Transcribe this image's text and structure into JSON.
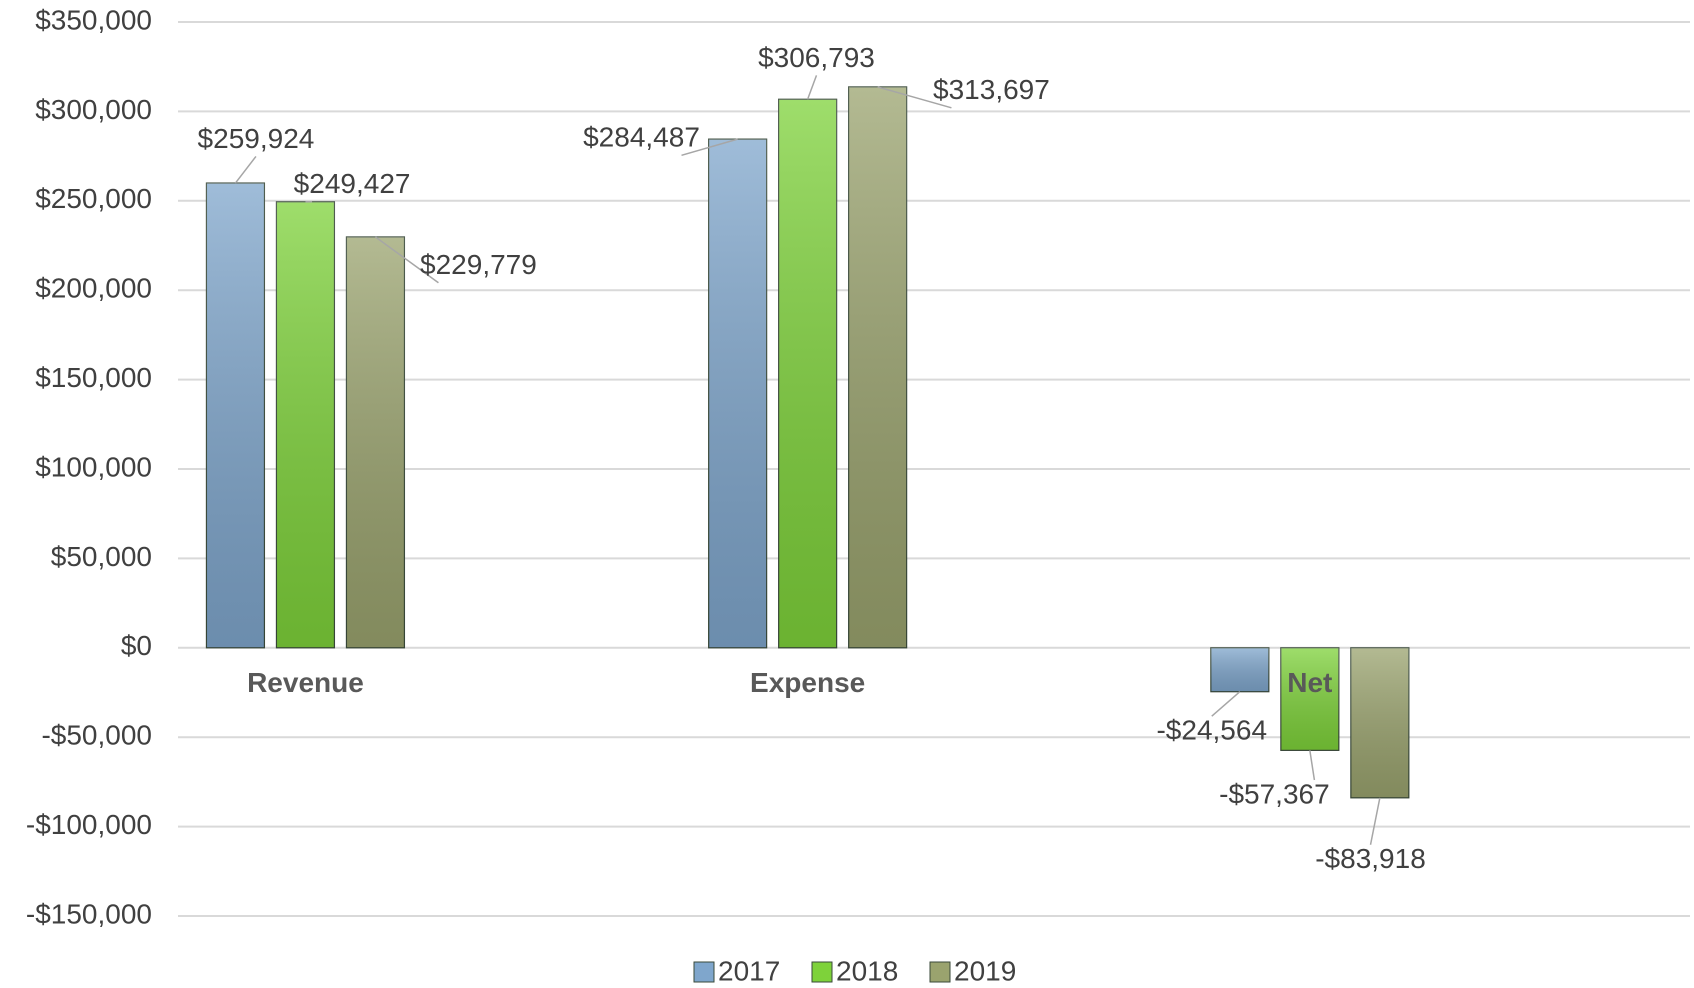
{
  "chart_data": {
    "type": "bar",
    "categories": [
      "Revenue",
      "Expense",
      "Net"
    ],
    "series": [
      {
        "name": "2017",
        "color": "#7fa6cc",
        "values": [
          259924,
          284487,
          -24564
        ],
        "value_labels": [
          "$259,924",
          "$284,487",
          "-$24,564"
        ]
      },
      {
        "name": "2018",
        "color": "#7ed23a",
        "values": [
          249427,
          306793,
          -57367
        ],
        "value_labels": [
          "$249,427",
          "$306,793",
          "-$57,367"
        ]
      },
      {
        "name": "2019",
        "color": "#9aa36e",
        "values": [
          229779,
          313697,
          -83918
        ],
        "value_labels": [
          "$229,779",
          "$313,697",
          "-$83,918"
        ]
      }
    ],
    "ylim": [
      -150000,
      350000
    ],
    "yticks": [
      {
        "value": -150000,
        "label": "-$150,000"
      },
      {
        "value": -100000,
        "label": "-$100,000"
      },
      {
        "value": -50000,
        "label": "-$50,000"
      },
      {
        "value": 0,
        "label": "$0"
      },
      {
        "value": 50000,
        "label": "$50,000"
      },
      {
        "value": 100000,
        "label": "$100,000"
      },
      {
        "value": 150000,
        "label": "$150,000"
      },
      {
        "value": 200000,
        "label": "$200,000"
      },
      {
        "value": 250000,
        "label": "$250,000"
      },
      {
        "value": 300000,
        "label": "$300,000"
      },
      {
        "value": 350000,
        "label": "$350,000"
      }
    ],
    "grid": true,
    "legend": "bottom"
  }
}
